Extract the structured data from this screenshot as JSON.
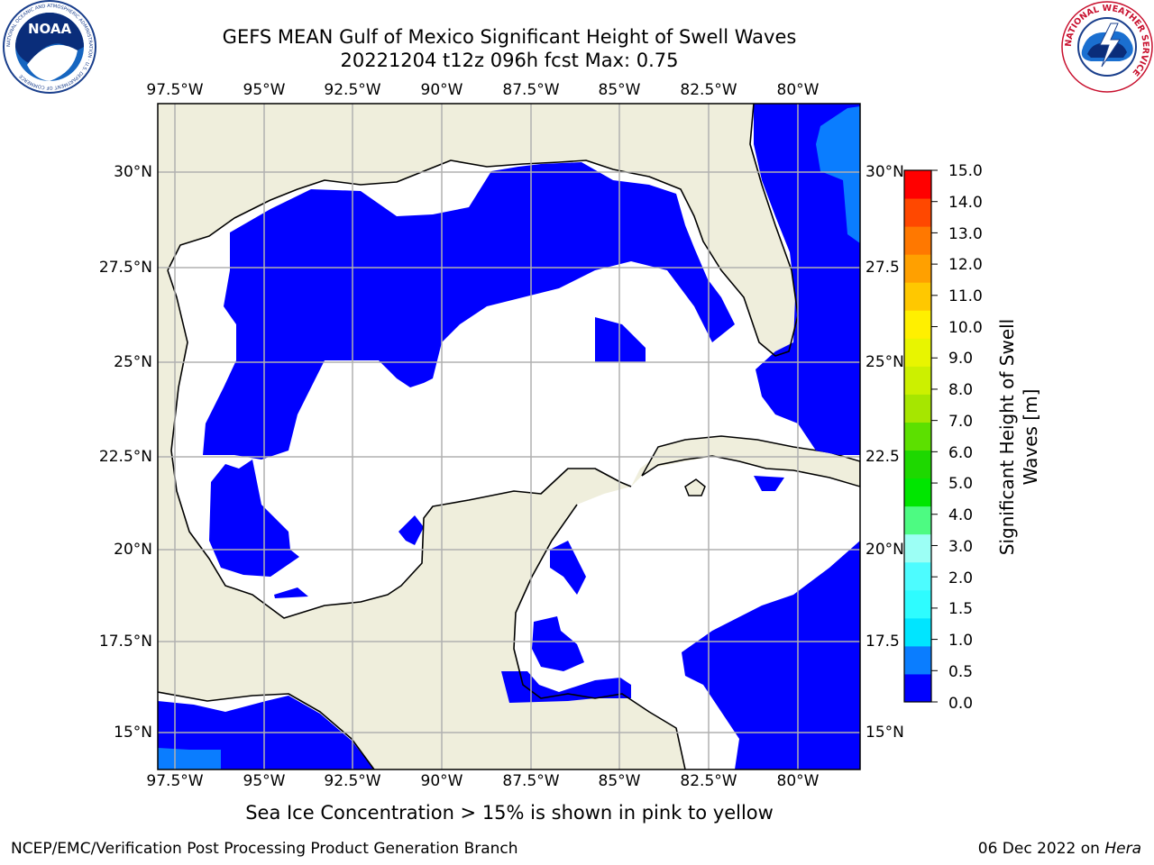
{
  "header": {
    "title_line1": "GEFS MEAN Gulf of Mexico Significant Height of Swell Waves",
    "title_line2": "20221204 t12z 096h fcst   Max: 0.75"
  },
  "logos": {
    "left": {
      "name": "noaa-logo",
      "text": "NOAA",
      "ring_text": "NATIONAL OCEANIC AND ATMOSPHERIC ADMINISTRATION · U.S. DEPARTMENT OF COMMERCE"
    },
    "right": {
      "name": "nws-logo",
      "ring_text": "NATIONAL WEATHER SERVICE"
    }
  },
  "map": {
    "lon_ticks": [
      "97.5°W",
      "95°W",
      "92.5°W",
      "90°W",
      "87.5°W",
      "85°W",
      "82.5°W",
      "80°W"
    ],
    "lat_ticks": [
      "30°N",
      "27.5°N",
      "25°N",
      "22.5°N",
      "20°N",
      "17.5°N",
      "15°N"
    ],
    "lat_ticks_right": [
      "30°N",
      "27.5",
      "25°N",
      "22.5",
      "20°N",
      "17.5",
      "15°N"
    ],
    "land_color": "#efeedc",
    "ocean_color": "#ffffff",
    "swell_color": "#0000ff",
    "swell_color_2": "#0a7dff",
    "grid_color": "#b0b0b0"
  },
  "colorbar": {
    "title_line1": "Significant Height of Swell",
    "title_line2": "Waves [m]",
    "labels": [
      "15.0",
      "14.0",
      "13.0",
      "12.0",
      "11.0",
      "10.0",
      "9.0",
      "8.0",
      "7.0",
      "6.0",
      "5.0",
      "4.0",
      "3.0",
      "2.0",
      "1.5",
      "1.0",
      "0.5",
      "0.0"
    ],
    "colors": [
      "#0000ff",
      "#0a7dff",
      "#00e5ff",
      "#2efcff",
      "#4dfcff",
      "#9cfff5",
      "#4dfb82",
      "#00e600",
      "#1ed800",
      "#5ce000",
      "#a6e600",
      "#ccf000",
      "#e8f500",
      "#fff000",
      "#ffc800",
      "#ffa000",
      "#ff7800",
      "#ff4800",
      "#ff0000"
    ]
  },
  "note": "Sea Ice Concentration > 15% is shown in pink to yellow",
  "footer": {
    "left": "NCEP/EMC/Verification Post Processing Product Generation Branch",
    "right_prefix": "06 Dec 2022 on ",
    "right_host": "Hera"
  }
}
